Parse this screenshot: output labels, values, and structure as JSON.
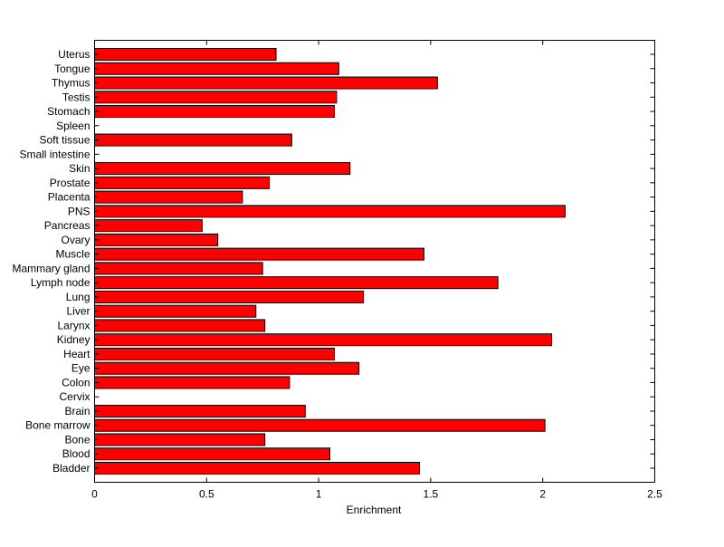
{
  "chart_data": {
    "type": "bar",
    "orientation": "horizontal",
    "title": "",
    "xlabel": "Enrichment",
    "ylabel": "",
    "xlim": [
      0,
      2.5
    ],
    "xticks": [
      0,
      0.5,
      1,
      1.5,
      2,
      2.5
    ],
    "xtick_labels": [
      "0",
      "0.5",
      "1",
      "1.5",
      "2",
      "2.5"
    ],
    "grid": false,
    "bar_color": "#ff0000",
    "categories": [
      "Bladder",
      "Blood",
      "Bone",
      "Bone marrow",
      "Brain",
      "Cervix",
      "Colon",
      "Eye",
      "Heart",
      "Kidney",
      "Larynx",
      "Liver",
      "Lung",
      "Lymph node",
      "Mammary gland",
      "Muscle",
      "Ovary",
      "Pancreas",
      "PNS",
      "Placenta",
      "Prostate",
      "Skin",
      "Small intestine",
      "Soft tissue",
      "Spleen",
      "Stomach",
      "Testis",
      "Thymus",
      "Tongue",
      "Uterus"
    ],
    "values": [
      1.45,
      1.05,
      0.76,
      2.01,
      0.94,
      0,
      0.87,
      1.18,
      1.07,
      2.04,
      0.76,
      0.72,
      1.2,
      1.8,
      0.75,
      1.47,
      0.55,
      0.48,
      2.1,
      0.66,
      0.78,
      1.14,
      0,
      0.88,
      0,
      1.07,
      1.08,
      1.53,
      1.09,
      0.81
    ]
  }
}
